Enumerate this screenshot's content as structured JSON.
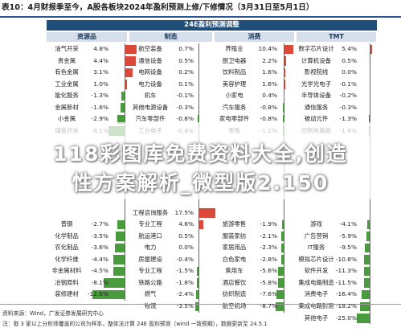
{
  "header": {
    "title": "表10：4月财报季至今，A股各板块2024年盈利预测上修/下修情况（3月31日至5月1日）"
  },
  "table": {
    "title": "24E盈利预测调整",
    "sections": [
      {
        "name": "资源品",
        "rows": [
          {
            "name": "油气开采",
            "value": 4.8
          },
          {
            "name": "贵金属",
            "value": 4.4
          },
          {
            "name": "有色金属",
            "value": 3.1
          },
          {
            "name": "工业金属",
            "value": 1.0
          },
          {
            "name": "能化服务",
            "value": -1.3
          },
          {
            "name": "金属新材",
            "value": -1.6
          },
          {
            "name": "小金属",
            "value": -2.9
          },
          {
            "name": "煤炭开采",
            "value": -6.1
          },
          {
            "name": "",
            "value": null
          },
          {
            "name": "",
            "value": null
          },
          {
            "name": "",
            "value": null
          },
          {
            "name": "",
            "value": null
          },
          {
            "name": "",
            "value": null
          },
          {
            "name": "",
            "value": null
          },
          {
            "name": "",
            "value": null
          },
          {
            "name": "普钢",
            "value": -2.7
          },
          {
            "name": "化学制品",
            "value": -3.5
          },
          {
            "name": "农化制品",
            "value": -3.6
          },
          {
            "name": "化学纤维",
            "value": -4.4
          },
          {
            "name": "非金属材料",
            "value": -4.5
          },
          {
            "name": "冶钢原料",
            "value": -8.1
          },
          {
            "name": "装修建材",
            "value": -12.6
          }
        ]
      },
      {
        "name": "制造",
        "rows": [
          {
            "name": "航空装备",
            "value": 0.7
          },
          {
            "name": "通信设备",
            "value": 0.5
          },
          {
            "name": "电网设备",
            "value": 0.2
          },
          {
            "name": "电力设备",
            "value": 0.1
          },
          {
            "name": "机车",
            "value": -0.1
          },
          {
            "name": "其他电源设备",
            "value": -0.3
          },
          {
            "name": "汽车零部件",
            "value": -0.8
          },
          {
            "name": "工业电子",
            "value": -0.4
          },
          {
            "name": "",
            "value": null
          },
          {
            "name": "",
            "value": null
          },
          {
            "name": "",
            "value": null
          },
          {
            "name": "",
            "value": null
          },
          {
            "name": "",
            "value": null
          },
          {
            "name": "",
            "value": null
          },
          {
            "name": "工程咨询服务",
            "value": 17.5
          },
          {
            "name": "专业工程",
            "value": 4.6
          },
          {
            "name": "航运港口",
            "value": 0.5
          },
          {
            "name": "电力",
            "value": 0.0
          },
          {
            "name": "房屋建设",
            "value": -0.4
          },
          {
            "name": "专业工程",
            "value": -1.5
          },
          {
            "name": "铁路公路",
            "value": -1.8
          },
          {
            "name": "燃气",
            "value": -2.4
          },
          {
            "name": "物流",
            "value": -3.5
          }
        ]
      },
      {
        "name": "消费",
        "rows": [
          {
            "name": "养殖业",
            "value": 10.4
          },
          {
            "name": "厨卫电器",
            "value": 2.2
          },
          {
            "name": "饮料制品",
            "value": 1.6
          },
          {
            "name": "美容护理",
            "value": 1.6
          },
          {
            "name": "小家电",
            "value": 0.4
          },
          {
            "name": "汽车服务",
            "value": -0.8
          },
          {
            "name": "家电零部件",
            "value": -0.8
          },
          {
            "name": "零售",
            "value": -1.1
          },
          {
            "name": "",
            "value": null
          },
          {
            "name": "",
            "value": null
          },
          {
            "name": "",
            "value": null
          },
          {
            "name": "",
            "value": null
          },
          {
            "name": "",
            "value": null
          },
          {
            "name": "",
            "value": null
          },
          {
            "name": "",
            "value": null
          },
          {
            "name": "旅游零售",
            "value": -1.9
          },
          {
            "name": "服装家纺",
            "value": -2.1
          },
          {
            "name": "家居用品",
            "value": -2.3
          },
          {
            "name": "白色家电",
            "value": -2.8
          },
          {
            "name": "乘用车",
            "value": -5.6
          },
          {
            "name": "酒店餐饮",
            "value": -5.8
          },
          {
            "name": "纺织制造",
            "value": -7.6
          },
          {
            "name": "航空机场",
            "value": -8.7
          }
        ]
      },
      {
        "name": "TMT",
        "rows": [
          {
            "name": "数字芯片设计",
            "value": 5.4
          },
          {
            "name": "计算机设备",
            "value": 0.5
          },
          {
            "name": "影视院线",
            "value": 0.0
          },
          {
            "name": "光学光电子",
            "value": -0.1
          },
          {
            "name": "半导体设备",
            "value": -0.2
          },
          {
            "name": "通信服务",
            "value": -0.3
          },
          {
            "name": "被动元件",
            "value": -1.3
          },
          {
            "name": "印制电路板",
            "value": -1.6
          },
          {
            "name": "",
            "value": null
          },
          {
            "name": "",
            "value": null
          },
          {
            "name": "",
            "value": null
          },
          {
            "name": "",
            "value": null
          },
          {
            "name": "",
            "value": null
          },
          {
            "name": "",
            "value": null
          },
          {
            "name": "",
            "value": null
          },
          {
            "name": "游戏",
            "value": -4.1
          },
          {
            "name": "广告营销",
            "value": -5.9
          },
          {
            "name": "IT服务",
            "value": -9.5
          },
          {
            "name": "模拟芯片设计",
            "value": -10.6
          },
          {
            "name": "软件开发",
            "value": -11.3
          },
          {
            "name": "集成电路制造",
            "value": -11.5
          },
          {
            "name": "消费电子",
            "value": -16.4
          },
          {
            "name": "集成电路封测",
            "value": -18.2
          },
          {
            "name": "其他电子",
            "value": -25.0
          }
        ]
      }
    ]
  },
  "overlay": {
    "line1": "118彩图库免费资料大全,创造",
    "line2": "性方案解析_微型版2.150"
  },
  "footer": {
    "source": "资料来源：Wind，广发证券发展研究中心",
    "note": "注：取 3 家以上分析师覆盖的公司为样本，整体法计算 24E 盈利预测（wind 一致预期），数据更新至 24.5.1"
  },
  "colors": {
    "positive": "#d94a3b",
    "negative": "#4a9a3e",
    "header_bg": "#1f4e79"
  }
}
